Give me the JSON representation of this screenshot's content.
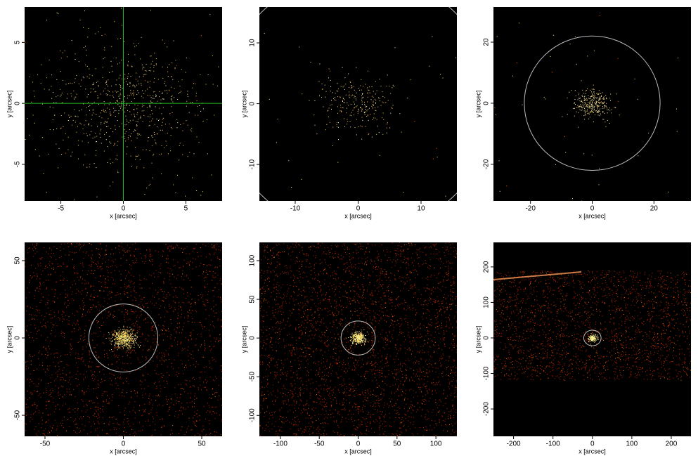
{
  "chart_data": [
    {
      "type": "image",
      "xlabel": "x [arcsec]",
      "ylabel": "y [arcsec]",
      "xlim": [
        -7.9,
        7.9
      ],
      "ylim": [
        -8,
        7.9
      ],
      "xticks": [
        -5,
        0,
        5
      ],
      "yticks": [
        -5,
        0,
        5
      ],
      "crosshair": {
        "x": 0,
        "y": 0,
        "color": "#22bb22"
      }
    },
    {
      "type": "image",
      "xlabel": "x [arcsec]",
      "ylabel": "y [arcsec]",
      "xlim": [
        -15.7,
        15.7
      ],
      "ylim": [
        -16,
        15.9
      ],
      "xticks": [
        -10,
        0,
        10
      ],
      "yticks": [
        -10,
        0,
        10
      ],
      "region": {
        "x": 0,
        "y": 0,
        "r": 21.5,
        "color": "#bbbbbb"
      }
    },
    {
      "type": "image",
      "xlabel": "x [arcsec]",
      "ylabel": "y [arcsec]",
      "xlim": [
        -32,
        32
      ],
      "ylim": [
        -32,
        31.5
      ],
      "xticks": [
        -20,
        0,
        20
      ],
      "yticks": [
        -20,
        0,
        20
      ],
      "region": {
        "x": 0,
        "y": 0,
        "r": 22,
        "color": "#bbbbbb"
      }
    },
    {
      "type": "image",
      "xlabel": "x [arcsec]",
      "ylabel": "y [arcsec]",
      "xlim": [
        -63,
        63
      ],
      "ylim": [
        -63.6,
        61.8
      ],
      "xticks": [
        -50,
        0,
        50
      ],
      "yticks": [
        -50,
        0,
        50
      ],
      "region": {
        "x": 0,
        "y": 0,
        "r": 22,
        "color": "#bbbbbb"
      }
    },
    {
      "type": "image",
      "xlabel": "x [arcsec]",
      "ylabel": "y [arcsec]",
      "xlim": [
        -127,
        127
      ],
      "ylim": [
        -127,
        123.6
      ],
      "xticks": [
        -100,
        -50,
        0,
        50,
        100
      ],
      "yticks": [
        -100,
        -50,
        0,
        50,
        100
      ],
      "region": {
        "x": 0,
        "y": 0,
        "r": 22,
        "color": "#bbbbbb"
      }
    },
    {
      "type": "image",
      "xlabel": "x [arcsec]",
      "ylabel": "y [arcsec]",
      "xlim": [
        -251,
        250
      ],
      "ylim": [
        -277,
        269
      ],
      "xticks": [
        -200,
        -100,
        0,
        100,
        200
      ],
      "yticks": [
        -200,
        -100,
        0,
        100,
        200
      ],
      "region": {
        "x": 0,
        "y": 0,
        "r": 22,
        "color": "#bbbbbb"
      }
    }
  ]
}
